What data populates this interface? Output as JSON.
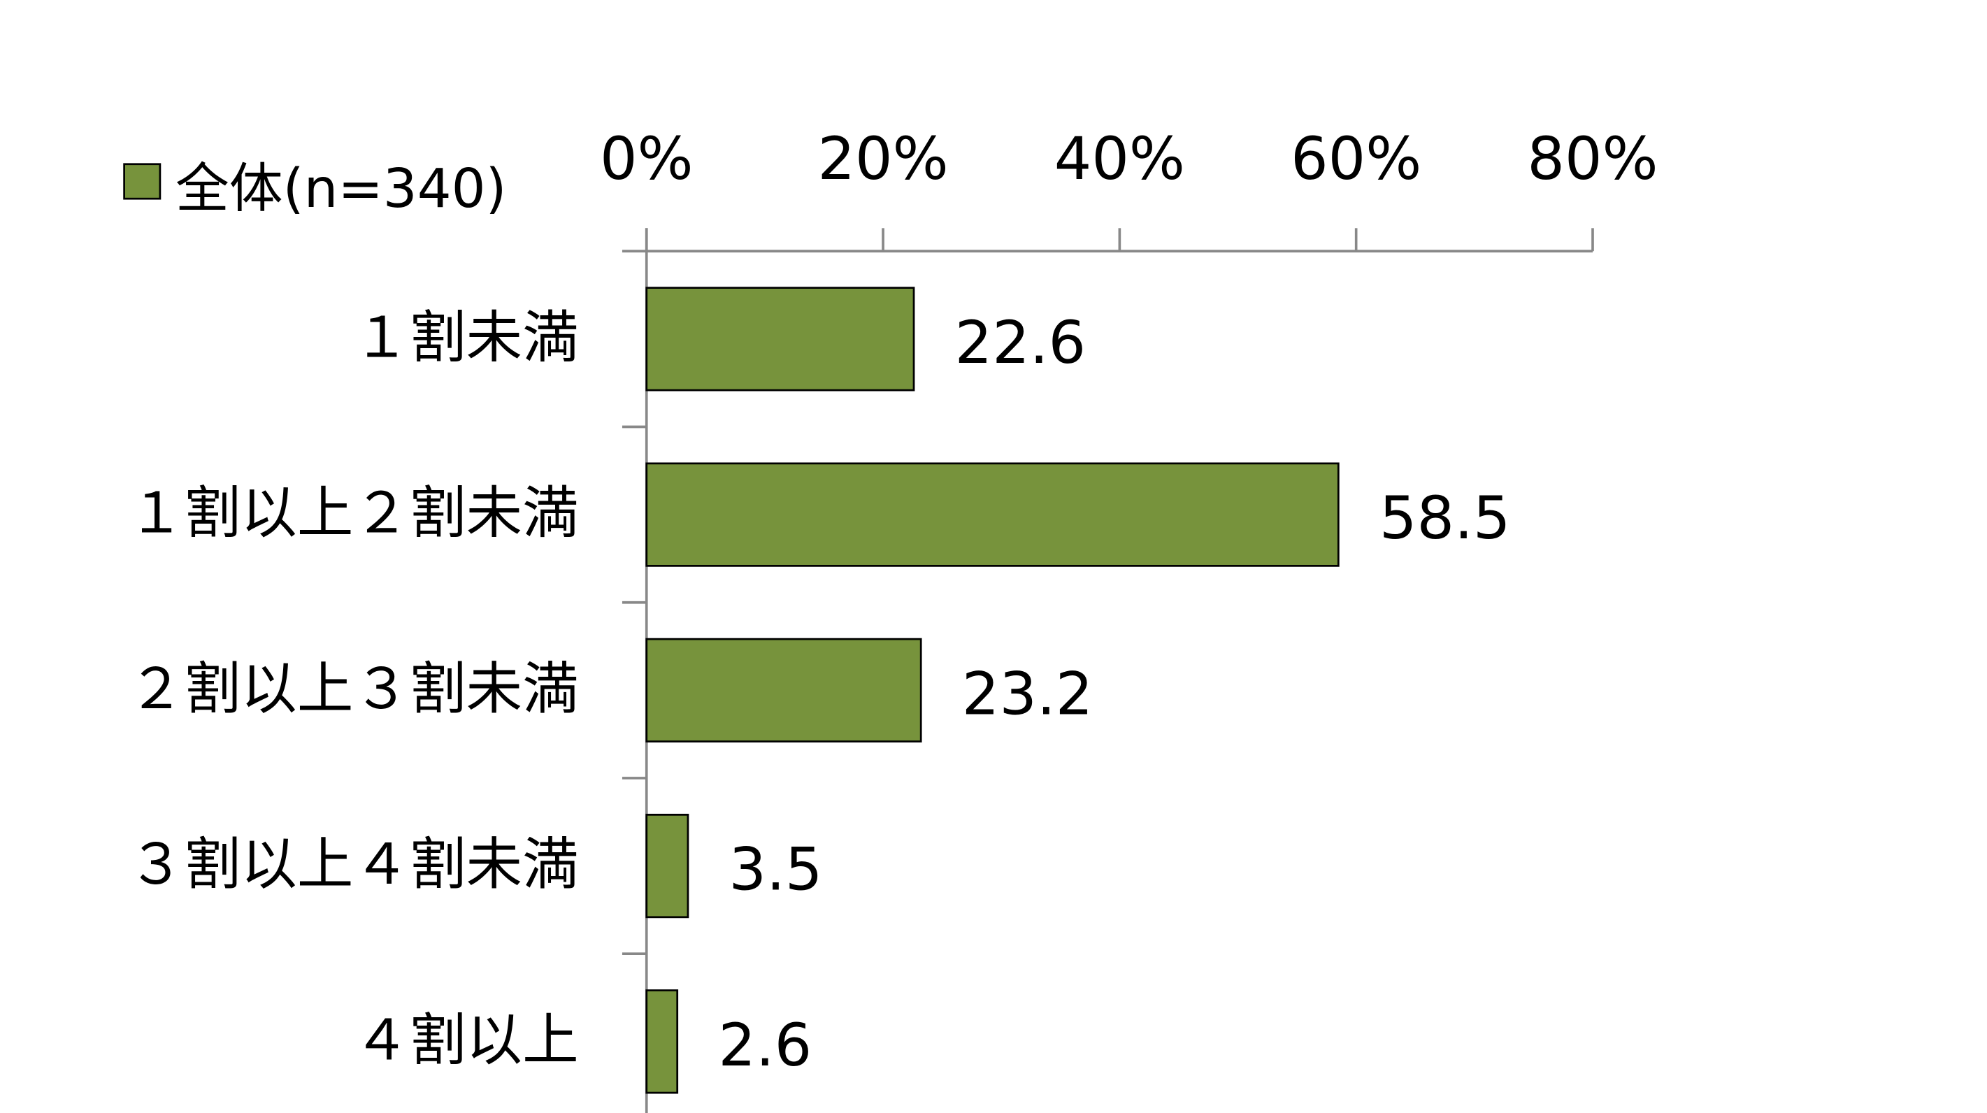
{
  "chart_data": {
    "type": "bar",
    "orientation": "horizontal",
    "categories": [
      "１割未満",
      "１割以上２割未満",
      "２割以上３割未満",
      "３割以上４割未満",
      "４割以上"
    ],
    "series": [
      {
        "name": "全体(n=340)",
        "color": "#77933c",
        "values": [
          22.6,
          58.5,
          23.2,
          3.5,
          2.6
        ]
      }
    ],
    "xlim": [
      0,
      80
    ],
    "xticks": [
      {
        "value": 0,
        "label": "0%"
      },
      {
        "value": 20,
        "label": "20%"
      },
      {
        "value": 40,
        "label": "40%"
      },
      {
        "value": 60,
        "label": "60%"
      },
      {
        "value": 80,
        "label": "80%"
      }
    ],
    "legend": "top-left"
  }
}
